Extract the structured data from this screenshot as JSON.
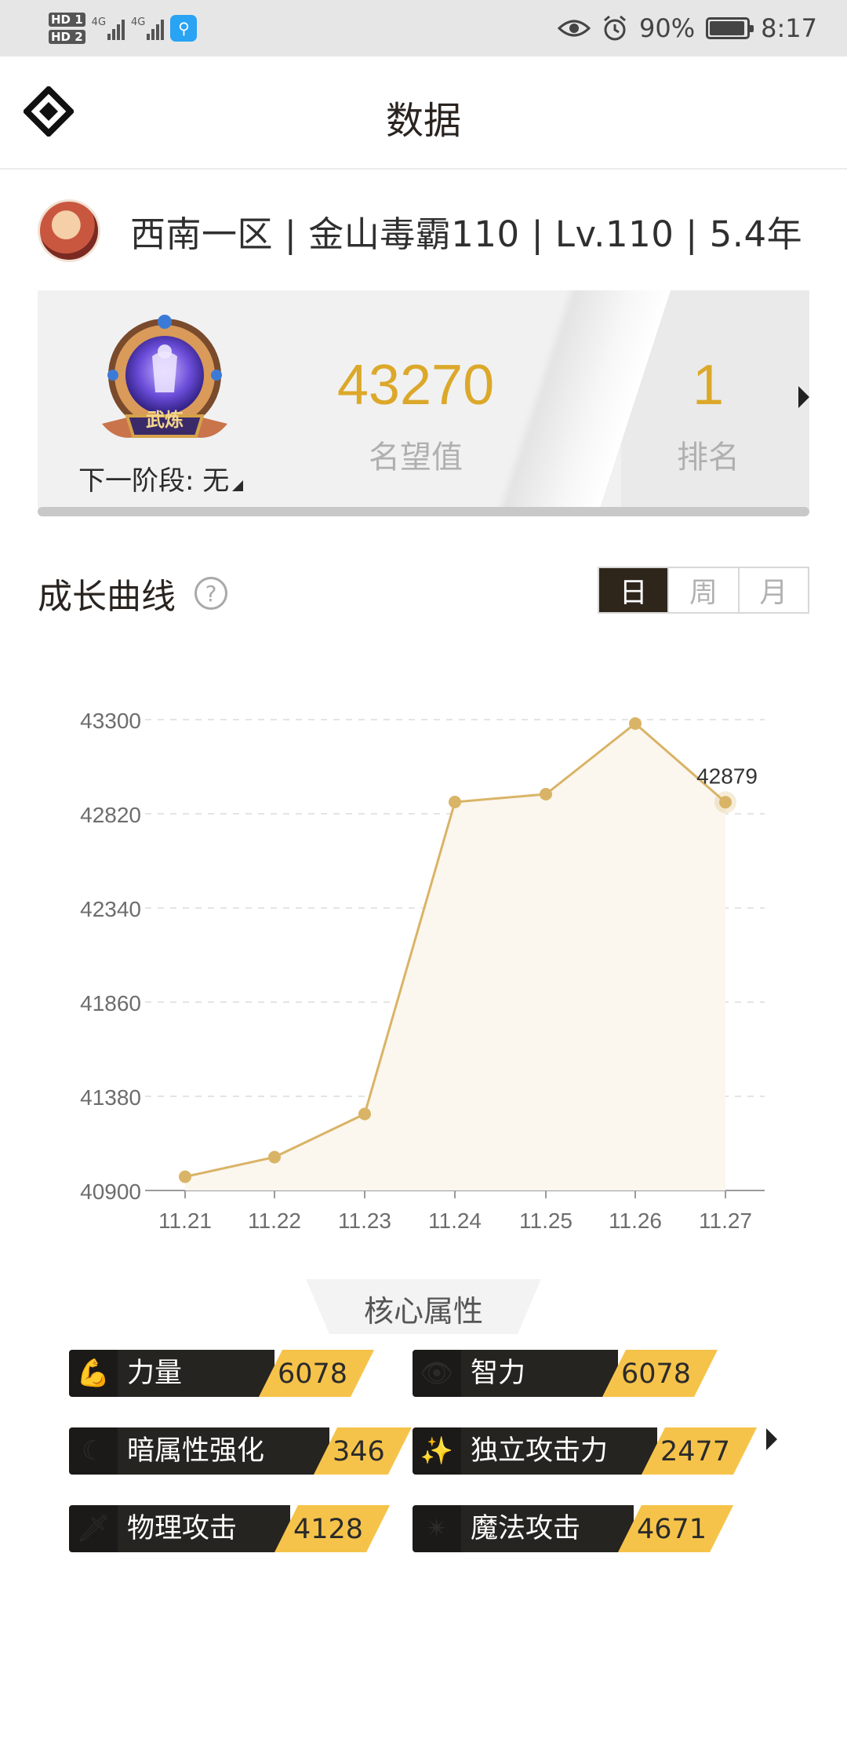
{
  "status_bar": {
    "sim1": "HD 1",
    "sim2": "HD 2",
    "net1": "4G",
    "net2": "4G",
    "battery": "90%",
    "time": "8:17",
    "icons": [
      "eye-icon",
      "alarm-icon",
      "battery-saver-icon"
    ]
  },
  "header": {
    "title": "数据",
    "logo_icon": "diamond-logo-icon"
  },
  "user": {
    "info": "西南一区 | 金山毒霸110 | Lv.110 | 5.4年"
  },
  "reputation": {
    "badge_text": "武炼",
    "next_stage": "下一阶段: 无",
    "value": "43270",
    "value_label": "名望值",
    "rank": "1",
    "rank_label": "排名"
  },
  "growth": {
    "title": "成长曲线",
    "tabs": [
      "日",
      "周",
      "月"
    ],
    "selected_tab": "日"
  },
  "chart_data": {
    "type": "area",
    "x": [
      "11.21",
      "11.22",
      "11.23",
      "11.24",
      "11.25",
      "11.26",
      "11.27"
    ],
    "series": [
      {
        "values": [
          40970,
          41070,
          41290,
          42880,
          42920,
          43280,
          42879
        ]
      }
    ],
    "y_ticks": [
      40900,
      41380,
      41860,
      42340,
      42820,
      43300
    ],
    "ylim": [
      40900,
      43300
    ],
    "last_point_label": "42879",
    "grid": "dashed horizontal",
    "colors": {
      "line": "#d9b466",
      "fill": "#fbf6ee"
    }
  },
  "core": {
    "title": "核心属性",
    "items": [
      {
        "name": "力量",
        "value": "6078",
        "icon": "fist-icon"
      },
      {
        "name": "智力",
        "value": "6078",
        "icon": "eye-icon"
      },
      {
        "name": "暗属性强化",
        "value": "346",
        "icon": "scythe-icon"
      },
      {
        "name": "独立攻击力",
        "value": "2477",
        "icon": "sword-sparkle-icon"
      },
      {
        "name": "物理攻击",
        "value": "4128",
        "icon": "sword-icon"
      },
      {
        "name": "魔法攻击",
        "value": "4671",
        "icon": "sparkle-icon"
      }
    ]
  },
  "colors": {
    "accent": "#dca82a",
    "value_badge": "#f6c34a",
    "dark": "#2e261b"
  }
}
